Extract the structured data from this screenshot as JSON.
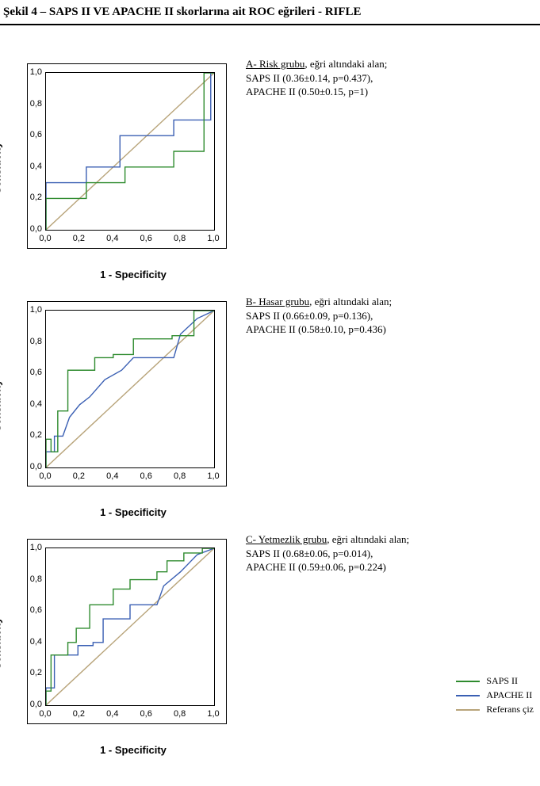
{
  "title": "Şekil 4 – SAPS II VE APACHE II skorlarına ait ROC eğrileri - RIFLE",
  "axis": {
    "xlabel": "1 - Specificity",
    "ylabel": "Sensitivity",
    "ticks": [
      "0,0",
      "0,2",
      "0,4",
      "0,6",
      "0,8",
      "1,0"
    ],
    "tick_vals": [
      0.0,
      0.2,
      0.4,
      0.6,
      0.8,
      1.0
    ],
    "lim": [
      0.0,
      1.0
    ]
  },
  "colors": {
    "saps": "#2e8b2e",
    "apache": "#3a5fb3",
    "reference": "#b8a47a",
    "frame": "#000000",
    "background": "#ffffff"
  },
  "line_width": 1.4,
  "legend": {
    "saps": "SAPS II",
    "apache": "APACHE II",
    "reference": "Referans çiz"
  },
  "panels": {
    "A": {
      "caption_head": "A- Risk grubu",
      "caption_tail": ", eğri altındaki alan;",
      "line2": " SAPS   II   (0.36±0.14,   p=0.437),",
      "line3": "APACHE II (0.50±0.15, p=1)",
      "saps": [
        [
          0,
          0
        ],
        [
          0.0,
          0.2
        ],
        [
          0.24,
          0.2
        ],
        [
          0.24,
          0.3
        ],
        [
          0.47,
          0.3
        ],
        [
          0.47,
          0.4
        ],
        [
          0.76,
          0.4
        ],
        [
          0.76,
          0.5
        ],
        [
          0.94,
          0.5
        ],
        [
          0.94,
          1.0
        ],
        [
          1,
          1
        ]
      ],
      "apache": [
        [
          0,
          0
        ],
        [
          0.0,
          0.3
        ],
        [
          0.24,
          0.3
        ],
        [
          0.24,
          0.4
        ],
        [
          0.44,
          0.4
        ],
        [
          0.44,
          0.6
        ],
        [
          0.76,
          0.6
        ],
        [
          0.76,
          0.7
        ],
        [
          0.98,
          0.7
        ],
        [
          0.98,
          1.0
        ],
        [
          1,
          1
        ]
      ]
    },
    "B": {
      "caption_head": "B- Hasar grubu",
      "caption_tail": ", eğri altındaki alan;",
      "line2": "SAPS II (0.66±0.09, p=0.136),",
      "line3": " APACHE II (0.58±0.10, p=0.436)",
      "saps": [
        [
          0,
          0
        ],
        [
          0.0,
          0.18
        ],
        [
          0.03,
          0.18
        ],
        [
          0.03,
          0.1
        ],
        [
          0.07,
          0.1
        ],
        [
          0.07,
          0.36
        ],
        [
          0.13,
          0.36
        ],
        [
          0.13,
          0.62
        ],
        [
          0.29,
          0.62
        ],
        [
          0.29,
          0.7
        ],
        [
          0.4,
          0.7
        ],
        [
          0.4,
          0.72
        ],
        [
          0.52,
          0.72
        ],
        [
          0.52,
          0.82
        ],
        [
          0.75,
          0.82
        ],
        [
          0.75,
          0.84
        ],
        [
          0.88,
          0.84
        ],
        [
          0.88,
          1.0
        ],
        [
          1,
          1
        ]
      ],
      "apache": [
        [
          0,
          0
        ],
        [
          0.0,
          0.1
        ],
        [
          0.05,
          0.1
        ],
        [
          0.05,
          0.2
        ],
        [
          0.1,
          0.2
        ],
        [
          0.14,
          0.32
        ],
        [
          0.2,
          0.4
        ],
        [
          0.26,
          0.45
        ],
        [
          0.35,
          0.56
        ],
        [
          0.45,
          0.62
        ],
        [
          0.52,
          0.7
        ],
        [
          0.76,
          0.7
        ],
        [
          0.8,
          0.85
        ],
        [
          0.9,
          0.95
        ],
        [
          1,
          1
        ]
      ]
    },
    "C": {
      "caption_head": "C-  Yetmezlik  grubu",
      "caption_tail": ",  eğri  altındaki  alan;",
      "line2": "SAPS II (0.68±0.06, p=0.014),",
      "line3": "APACHE II (0.59±0.06, p=0.224)",
      "saps": [
        [
          0,
          0
        ],
        [
          0.0,
          0.09
        ],
        [
          0.03,
          0.09
        ],
        [
          0.03,
          0.32
        ],
        [
          0.13,
          0.32
        ],
        [
          0.13,
          0.4
        ],
        [
          0.18,
          0.4
        ],
        [
          0.18,
          0.49
        ],
        [
          0.26,
          0.49
        ],
        [
          0.26,
          0.64
        ],
        [
          0.4,
          0.64
        ],
        [
          0.4,
          0.74
        ],
        [
          0.5,
          0.74
        ],
        [
          0.5,
          0.8
        ],
        [
          0.66,
          0.8
        ],
        [
          0.66,
          0.85
        ],
        [
          0.72,
          0.85
        ],
        [
          0.72,
          0.92
        ],
        [
          0.82,
          0.92
        ],
        [
          0.82,
          0.97
        ],
        [
          0.93,
          0.97
        ],
        [
          0.93,
          1.0
        ],
        [
          1,
          1
        ]
      ],
      "apache": [
        [
          0,
          0
        ],
        [
          0.0,
          0.11
        ],
        [
          0.05,
          0.11
        ],
        [
          0.05,
          0.32
        ],
        [
          0.19,
          0.32
        ],
        [
          0.19,
          0.38
        ],
        [
          0.28,
          0.38
        ],
        [
          0.28,
          0.4
        ],
        [
          0.34,
          0.4
        ],
        [
          0.34,
          0.55
        ],
        [
          0.5,
          0.55
        ],
        [
          0.5,
          0.64
        ],
        [
          0.66,
          0.64
        ],
        [
          0.7,
          0.76
        ],
        [
          0.8,
          0.85
        ],
        [
          0.9,
          0.96
        ],
        [
          1,
          1
        ]
      ]
    }
  }
}
